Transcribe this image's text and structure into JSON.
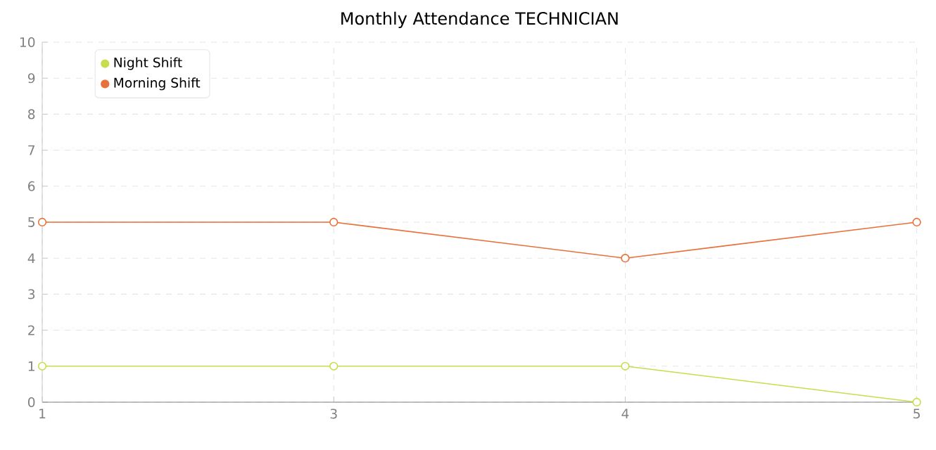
{
  "chart_data": {
    "type": "line",
    "title": "Monthly Attendance TECHNICIAN",
    "categories": [
      "1",
      "3",
      "4",
      "5"
    ],
    "series": [
      {
        "name": "Night Shift",
        "color": "#c8dc4c",
        "values": [
          1,
          1,
          1,
          0
        ]
      },
      {
        "name": "Morning Shift",
        "color": "#e8703a",
        "values": [
          5,
          5,
          4,
          5
        ]
      }
    ],
    "ylim": [
      0,
      10
    ],
    "yticks": [
      0,
      1,
      2,
      3,
      4,
      5,
      6,
      7,
      8,
      9,
      10
    ],
    "grid": true,
    "legend": "top left",
    "marker": "circle",
    "line_style": "solid"
  }
}
